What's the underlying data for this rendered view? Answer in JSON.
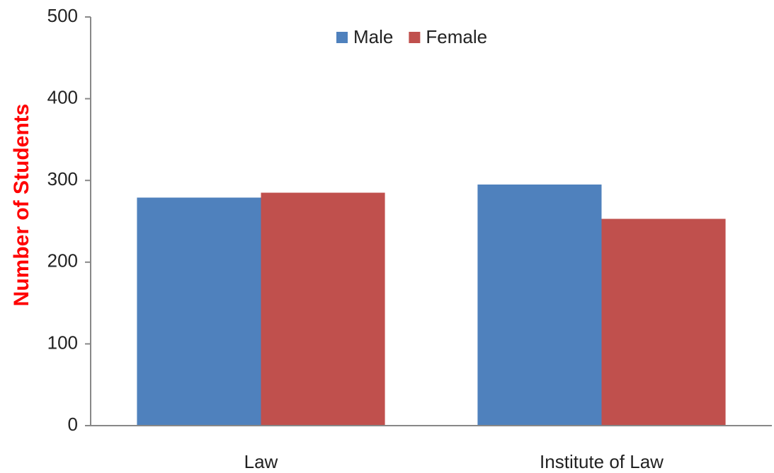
{
  "chart_data": {
    "type": "bar",
    "y_label": "Number of Students",
    "categories": [
      "Law",
      "Institute of Law"
    ],
    "series": [
      {
        "name": "Male",
        "color": "#4f81bd",
        "values": [
          279,
          295
        ]
      },
      {
        "name": "Female",
        "color": "#c0504d",
        "values": [
          285,
          253
        ]
      }
    ],
    "ylim": [
      0,
      500
    ],
    "yticks": [
      0,
      100,
      200,
      300,
      400,
      500
    ],
    "legend": "top",
    "y_label_color": "#ff0000"
  }
}
